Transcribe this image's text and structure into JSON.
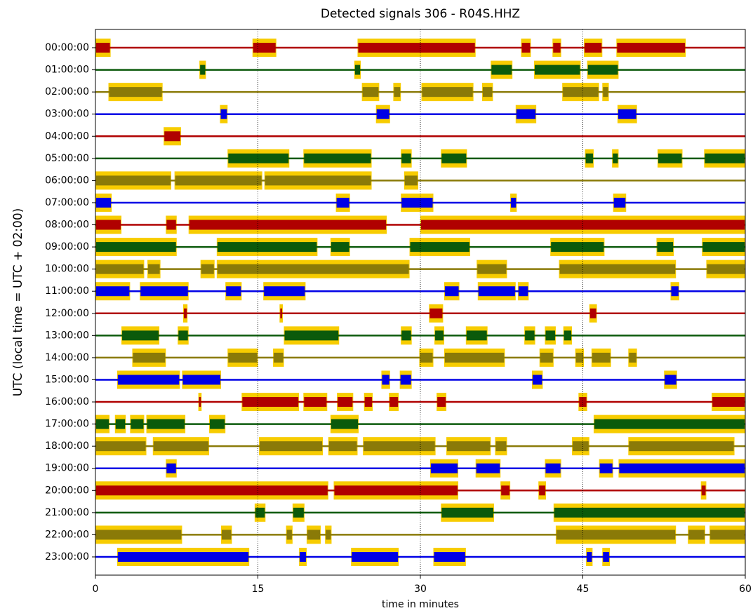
{
  "chart_data": {
    "type": "dayplot",
    "title": "Detected signals 306 - R04S.HHZ",
    "xlabel": "time in minutes",
    "ylabel": "UTC (local time = UTC + 02:00)",
    "xlim": [
      0,
      60
    ],
    "xticks": [
      0,
      15,
      30,
      45,
      60
    ],
    "grid": true,
    "detection_color": "#f7cc00",
    "colors": [
      "#b00000",
      "#0b5a0b",
      "#8a7a08",
      "#0000e6"
    ],
    "categories": [
      "00:00:00",
      "01:00:00",
      "02:00:00",
      "03:00:00",
      "04:00:00",
      "05:00:00",
      "06:00:00",
      "07:00:00",
      "08:00:00",
      "09:00:00",
      "10:00:00",
      "11:00:00",
      "12:00:00",
      "13:00:00",
      "14:00:00",
      "15:00:00",
      "16:00:00",
      "17:00:00",
      "18:00:00",
      "19:00:00",
      "20:00:00",
      "21:00:00",
      "22:00:00",
      "23:00:00"
    ],
    "detections": [
      [
        [
          0,
          1.4
        ],
        [
          14.5,
          16.7
        ],
        [
          24.2,
          35.1
        ],
        [
          39.3,
          40.2
        ],
        [
          42.2,
          43
        ],
        [
          45.1,
          46.8
        ],
        [
          48.1,
          54.5
        ]
      ],
      [
        [
          9.6,
          10.2
        ],
        [
          23.9,
          24.5
        ],
        [
          36.5,
          38.5
        ],
        [
          40.5,
          44.8
        ],
        [
          45.4,
          48.3
        ]
      ],
      [
        [
          1.2,
          6.2
        ],
        [
          24.6,
          26.2
        ],
        [
          27.5,
          28.2
        ],
        [
          30.1,
          34.9
        ],
        [
          35.7,
          36.7
        ],
        [
          43.1,
          46.5
        ],
        [
          46.8,
          47.4
        ]
      ],
      [
        [
          11.5,
          12.2
        ],
        [
          25.9,
          27.2
        ],
        [
          38.8,
          40.7
        ],
        [
          48.2,
          50
        ]
      ],
      [
        [
          6.3,
          7.9
        ]
      ],
      [
        [
          12.2,
          17.9
        ],
        [
          19.2,
          25.5
        ],
        [
          28.2,
          29.2
        ],
        [
          31.9,
          34.3
        ],
        [
          45.2,
          46
        ],
        [
          47.7,
          48.3
        ],
        [
          51.9,
          54.2
        ],
        [
          56.2,
          60
        ]
      ],
      [
        [
          0,
          7
        ],
        [
          7.3,
          15.4
        ],
        [
          15.6,
          25.5
        ],
        [
          28.5,
          29.8
        ]
      ],
      [
        [
          0,
          1.5
        ],
        [
          22.2,
          23.5
        ],
        [
          28.2,
          31.2
        ],
        [
          38.3,
          38.9
        ],
        [
          47.8,
          49
        ]
      ],
      [
        [
          0,
          2.4
        ],
        [
          6.5,
          7.5
        ],
        [
          8.6,
          26.9
        ],
        [
          30,
          60
        ]
      ],
      [
        [
          0,
          7.5
        ],
        [
          11.2,
          20.5
        ],
        [
          21.7,
          23.5
        ],
        [
          29,
          34.6
        ],
        [
          42,
          47
        ],
        [
          51.8,
          53.4
        ],
        [
          56,
          60
        ]
      ],
      [
        [
          0,
          4.5
        ],
        [
          4.8,
          6
        ],
        [
          9.7,
          11
        ],
        [
          11.2,
          29
        ],
        [
          35.2,
          38
        ],
        [
          42.8,
          53.6
        ],
        [
          56.4,
          60
        ]
      ],
      [
        [
          0,
          3.2
        ],
        [
          4.1,
          8.6
        ],
        [
          12,
          13.5
        ],
        [
          15.5,
          19.4
        ],
        [
          32.2,
          33.6
        ],
        [
          35.3,
          38.8
        ],
        [
          39,
          40
        ],
        [
          53.1,
          53.9
        ]
      ],
      [
        [
          8.1,
          8.5
        ],
        [
          17,
          17.3
        ],
        [
          30.8,
          32.1
        ],
        [
          45.6,
          46.3
        ]
      ],
      [
        [
          2.4,
          5.9
        ],
        [
          7.6,
          8.6
        ],
        [
          17.4,
          22.5
        ],
        [
          28.2,
          29.2
        ],
        [
          31.3,
          32.2
        ],
        [
          34.2,
          36.2
        ],
        [
          39.6,
          40.6
        ],
        [
          41.5,
          42.5
        ],
        [
          43.2,
          44
        ]
      ],
      [
        [
          3.4,
          6.5
        ],
        [
          12.2,
          15
        ],
        [
          16.4,
          17.4
        ],
        [
          29.9,
          31.2
        ],
        [
          32.2,
          37.8
        ],
        [
          41,
          42.3
        ],
        [
          44.3,
          45.1
        ],
        [
          45.8,
          47.6
        ],
        [
          49.2,
          50
        ]
      ],
      [
        [
          2,
          7.8
        ],
        [
          8,
          11.6
        ],
        [
          26.4,
          27.2
        ],
        [
          28.1,
          29.2
        ],
        [
          40.3,
          41.3
        ],
        [
          52.5,
          53.7
        ]
      ],
      [
        [
          9.5,
          9.8
        ],
        [
          13.5,
          18.8
        ],
        [
          19.2,
          21.4
        ],
        [
          22.3,
          23.8
        ],
        [
          24.8,
          25.6
        ],
        [
          27.1,
          28
        ],
        [
          31.5,
          32.4
        ],
        [
          44.6,
          45.4
        ],
        [
          56.9,
          60
        ]
      ],
      [
        [
          0,
          1.3
        ],
        [
          1.8,
          2.8
        ],
        [
          3.2,
          4.5
        ],
        [
          4.7,
          8.3
        ],
        [
          10.5,
          12
        ],
        [
          21.7,
          24.3
        ],
        [
          46,
          60
        ]
      ],
      [
        [
          0,
          4.7
        ],
        [
          5.3,
          10.5
        ],
        [
          15.1,
          21
        ],
        [
          21.5,
          24.2
        ],
        [
          24.7,
          31.4
        ],
        [
          32.4,
          36.5
        ],
        [
          36.9,
          38
        ],
        [
          44,
          45.6
        ],
        [
          49.2,
          59
        ]
      ],
      [
        [
          6.5,
          7.5
        ],
        [
          30.9,
          33.5
        ],
        [
          35.1,
          37.4
        ],
        [
          41.5,
          43
        ],
        [
          46.5,
          47.8
        ],
        [
          48.3,
          60
        ]
      ],
      [
        [
          0,
          21.5
        ],
        [
          22,
          33.5
        ],
        [
          37.4,
          38.3
        ],
        [
          40.9,
          41.6
        ],
        [
          55.9,
          56.4
        ]
      ],
      [
        [
          14.7,
          15.7
        ],
        [
          18.2,
          19.3
        ],
        [
          31.9,
          36.8
        ],
        [
          42.3,
          60
        ]
      ],
      [
        [
          0,
          8
        ],
        [
          11.6,
          12.6
        ],
        [
          17.6,
          18.2
        ],
        [
          19.5,
          20.8
        ],
        [
          21.2,
          21.8
        ],
        [
          42.5,
          53.6
        ],
        [
          54.7,
          56.3
        ],
        [
          56.7,
          60
        ]
      ],
      [
        [
          2,
          14.2
        ],
        [
          18.8,
          19.5
        ],
        [
          23.6,
          28
        ],
        [
          31.2,
          34.2
        ],
        [
          45.3,
          45.9
        ],
        [
          46.8,
          47.5
        ]
      ]
    ]
  }
}
